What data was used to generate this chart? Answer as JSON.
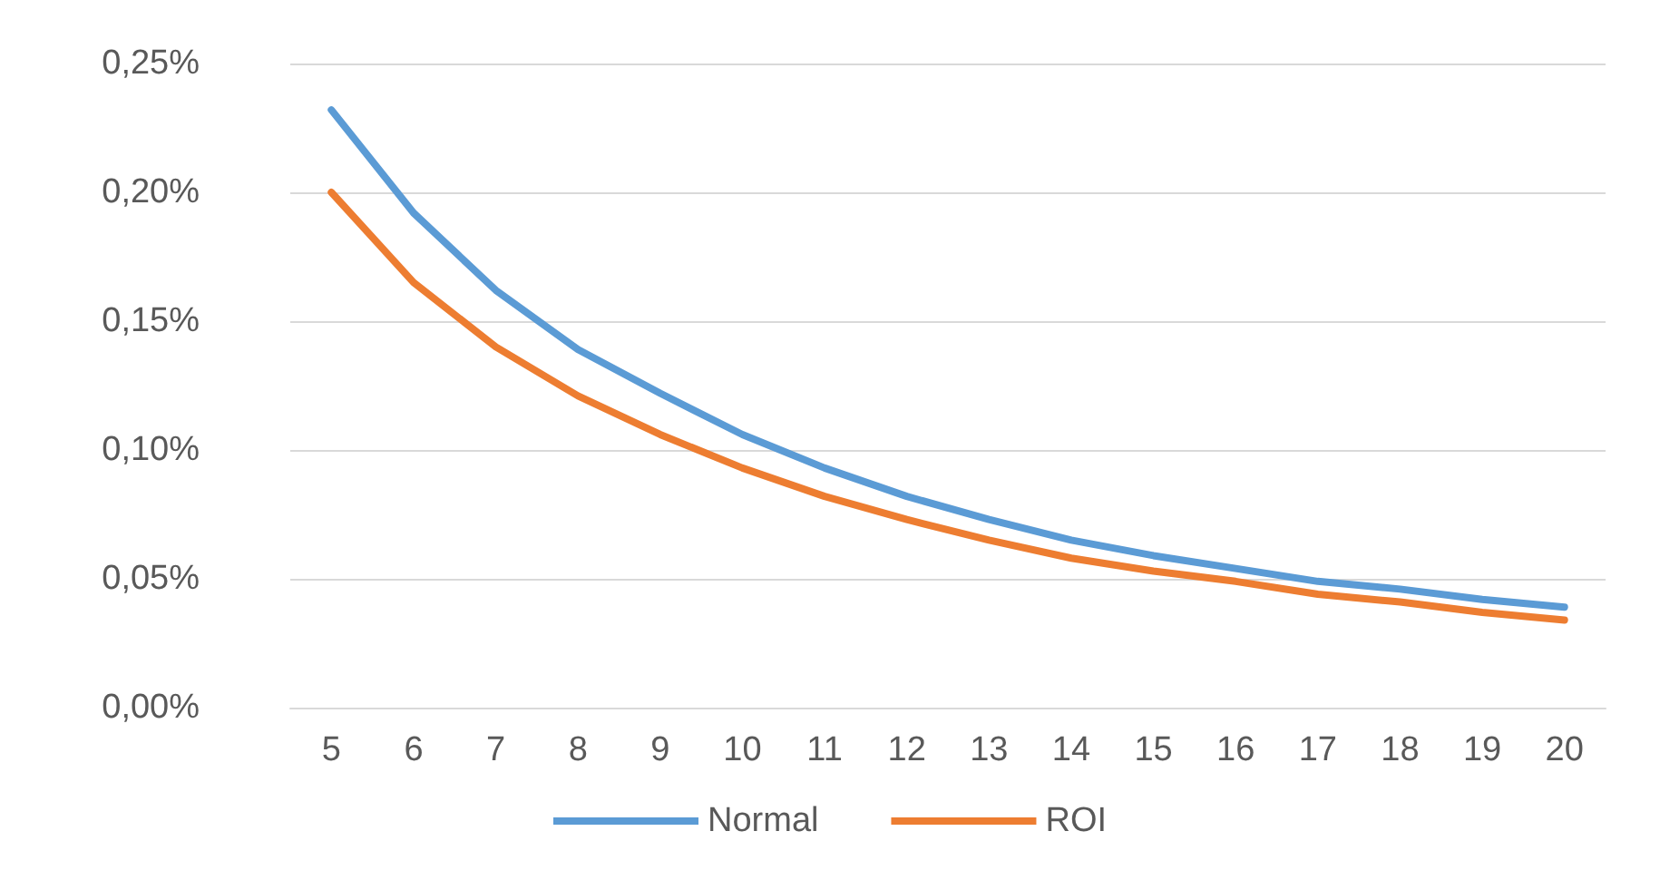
{
  "chart_data": {
    "type": "line",
    "categories": [
      "5",
      "6",
      "7",
      "8",
      "9",
      "10",
      "11",
      "12",
      "13",
      "14",
      "15",
      "16",
      "17",
      "18",
      "19",
      "20"
    ],
    "series": [
      {
        "name": "Normal",
        "color": "#5b9bd5",
        "values": [
          0.232,
          0.192,
          0.162,
          0.139,
          0.122,
          0.106,
          0.093,
          0.082,
          0.073,
          0.065,
          0.059,
          0.054,
          0.049,
          0.046,
          0.042,
          0.039
        ]
      },
      {
        "name": "ROI",
        "color": "#ed7d31",
        "values": [
          0.2,
          0.165,
          0.14,
          0.121,
          0.106,
          0.093,
          0.082,
          0.073,
          0.065,
          0.058,
          0.053,
          0.049,
          0.044,
          0.041,
          0.037,
          0.034
        ]
      }
    ],
    "ylim": [
      0,
      0.25
    ],
    "yticks": [
      {
        "value": 0,
        "label": "0,00%"
      },
      {
        "value": 0.05,
        "label": "0,05%"
      },
      {
        "value": 0.1,
        "label": "0,10%"
      },
      {
        "value": 0.15,
        "label": "0,15%"
      },
      {
        "value": 0.2,
        "label": "0,20%"
      },
      {
        "value": 0.25,
        "label": "0,25%"
      }
    ],
    "grid": "y",
    "legend": "bottom",
    "marker": "none",
    "line_style": "solid"
  }
}
